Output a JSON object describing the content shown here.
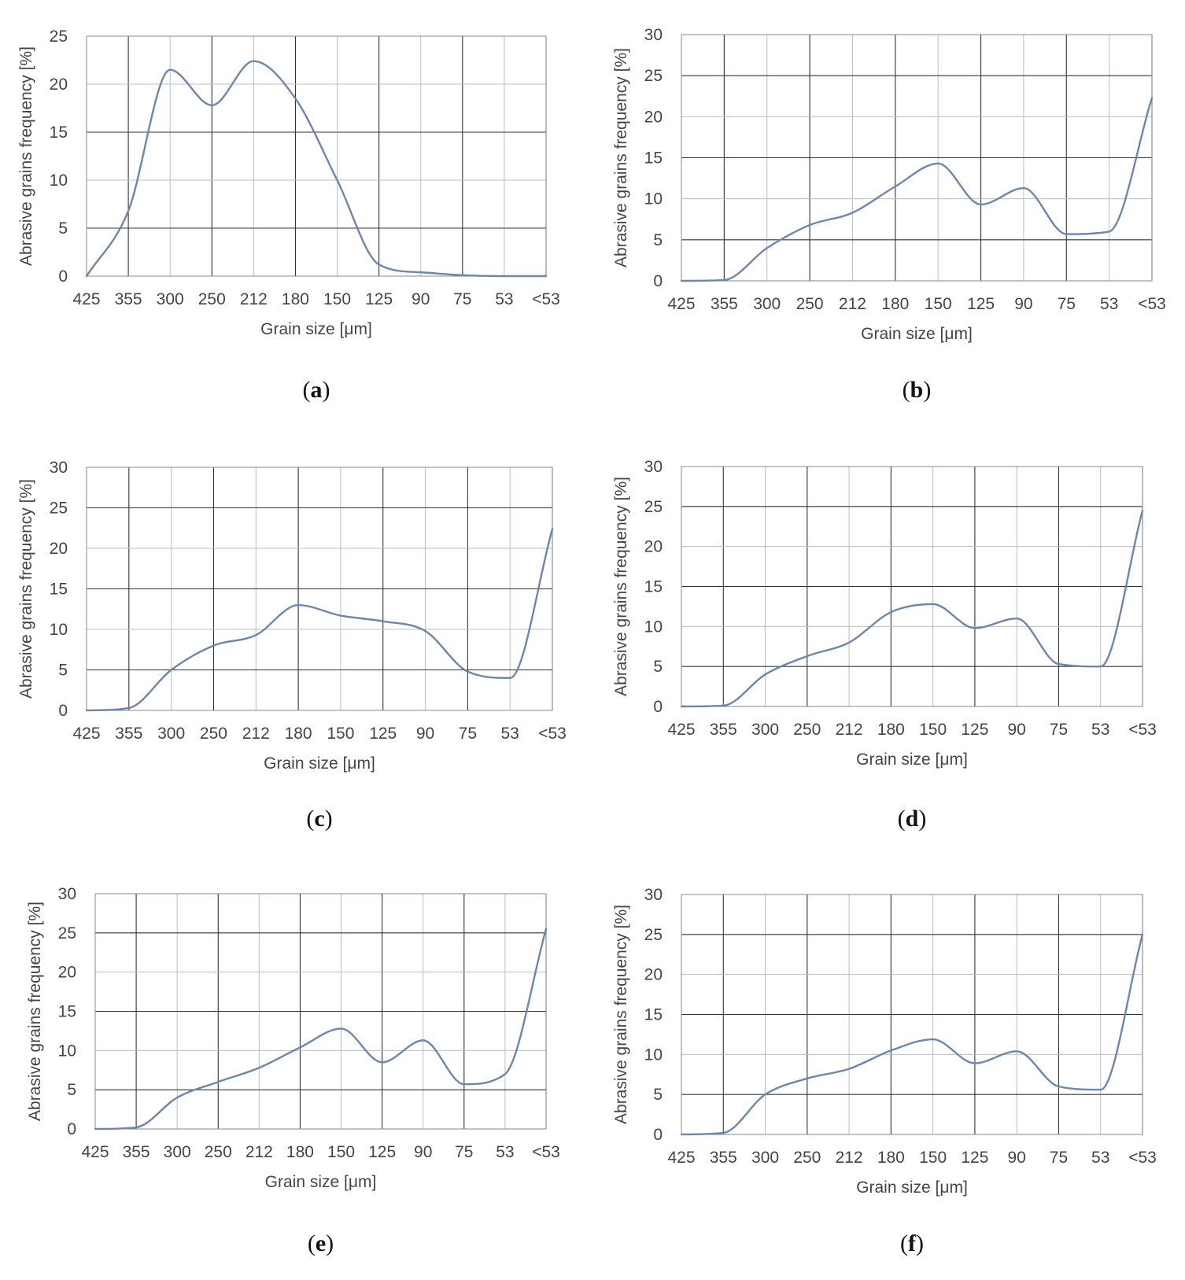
{
  "figure": {
    "line_color": "#6d86aa"
  },
  "chart_data": [
    {
      "panel": "a",
      "caption": "(a)",
      "caption_letter": "a",
      "type": "line",
      "title": "",
      "xlabel": "Grain size [μm]",
      "ylabel": "Abrasive grains frequency  [%]",
      "categories": [
        "425",
        "355",
        "300",
        "250",
        "212",
        "180",
        "150",
        "125",
        "90",
        "75",
        "53",
        "<53"
      ],
      "ylim": [
        0,
        25
      ],
      "yticks": [
        "0",
        "5",
        "10",
        "15",
        "20",
        "25"
      ],
      "series": [
        {
          "name": "Abrasive grains frequency",
          "values": [
            0,
            6.8,
            21.5,
            17.8,
            22.4,
            18.5,
            10.0,
            1.2,
            0.4,
            0.1,
            0,
            0
          ]
        }
      ]
    },
    {
      "panel": "b",
      "caption": "(b)",
      "caption_letter": "b",
      "type": "line",
      "title": "",
      "xlabel": "Grain size [μm]",
      "ylabel": "Abrasive grains frequency  [%]",
      "categories": [
        "425",
        "355",
        "300",
        "250",
        "212",
        "180",
        "150",
        "125",
        "90",
        "75",
        "53",
        "<53"
      ],
      "ylim": [
        0,
        30
      ],
      "yticks": [
        "0",
        "5",
        "10",
        "15",
        "20",
        "25",
        "30"
      ],
      "series": [
        {
          "name": "Abrasive grains frequency",
          "values": [
            0,
            0.1,
            4.0,
            6.8,
            8.3,
            11.5,
            14.3,
            9.3,
            11.3,
            5.7,
            6.0,
            22.3
          ]
        }
      ]
    },
    {
      "panel": "c",
      "caption": "(c)",
      "caption_letter": "c",
      "type": "line",
      "title": "",
      "xlabel": "Grain size [μm]",
      "ylabel": "Abrasive grains frequency  [%]",
      "categories": [
        "425",
        "355",
        "300",
        "250",
        "212",
        "180",
        "150",
        "125",
        "90",
        "75",
        "53",
        "<53"
      ],
      "ylim": [
        0,
        30
      ],
      "yticks": [
        "0",
        "5",
        "10",
        "15",
        "20",
        "25",
        "30"
      ],
      "series": [
        {
          "name": "Abrasive grains frequency",
          "values": [
            0,
            0.3,
            5.0,
            8.0,
            9.3,
            13.0,
            11.7,
            11.0,
            9.8,
            4.8,
            4.0,
            22.4
          ]
        }
      ]
    },
    {
      "panel": "d",
      "caption": "(d)",
      "caption_letter": "d",
      "type": "line",
      "title": "",
      "xlabel": "Grain size [μm]",
      "ylabel": "Abrasive grains frequency  [%]",
      "categories": [
        "425",
        "355",
        "300",
        "250",
        "212",
        "180",
        "150",
        "125",
        "90",
        "75",
        "53",
        "<53"
      ],
      "ylim": [
        0,
        30
      ],
      "yticks": [
        "0",
        "5",
        "10",
        "15",
        "20",
        "25",
        "30"
      ],
      "series": [
        {
          "name": "Abrasive grains frequency",
          "values": [
            0,
            0.1,
            4.0,
            6.3,
            8.0,
            11.8,
            12.8,
            9.8,
            11.0,
            5.3,
            5.0,
            24.5
          ]
        }
      ]
    },
    {
      "panel": "e",
      "caption": "(e)",
      "caption_letter": "e",
      "type": "line",
      "title": "",
      "xlabel": "Grain size [μm]",
      "ylabel": "Abrasive grains frequency  [%]",
      "categories": [
        "425",
        "355",
        "300",
        "250",
        "212",
        "180",
        "150",
        "125",
        "90",
        "75",
        "53",
        "<53"
      ],
      "ylim": [
        0,
        30
      ],
      "yticks": [
        "0",
        "5",
        "10",
        "15",
        "20",
        "25",
        "30"
      ],
      "series": [
        {
          "name": "Abrasive grains frequency",
          "values": [
            0,
            0.2,
            4.0,
            6.0,
            7.8,
            10.4,
            12.8,
            8.5,
            11.3,
            5.7,
            7.0,
            25.5
          ]
        }
      ]
    },
    {
      "panel": "f",
      "caption": "(f)",
      "caption_letter": "f",
      "type": "line",
      "title": "",
      "xlabel": "Grain size [μm]",
      "ylabel": "Abrasive grains frequency  [%]",
      "categories": [
        "425",
        "355",
        "300",
        "250",
        "212",
        "180",
        "150",
        "125",
        "90",
        "75",
        "53",
        "<53"
      ],
      "ylim": [
        0,
        30
      ],
      "yticks": [
        "0",
        "5",
        "10",
        "15",
        "20",
        "25",
        "30"
      ],
      "series": [
        {
          "name": "Abrasive grains frequency",
          "values": [
            0,
            0.2,
            5.0,
            7.0,
            8.2,
            10.5,
            11.9,
            8.9,
            10.4,
            6.0,
            5.6,
            25.0
          ]
        }
      ]
    }
  ]
}
